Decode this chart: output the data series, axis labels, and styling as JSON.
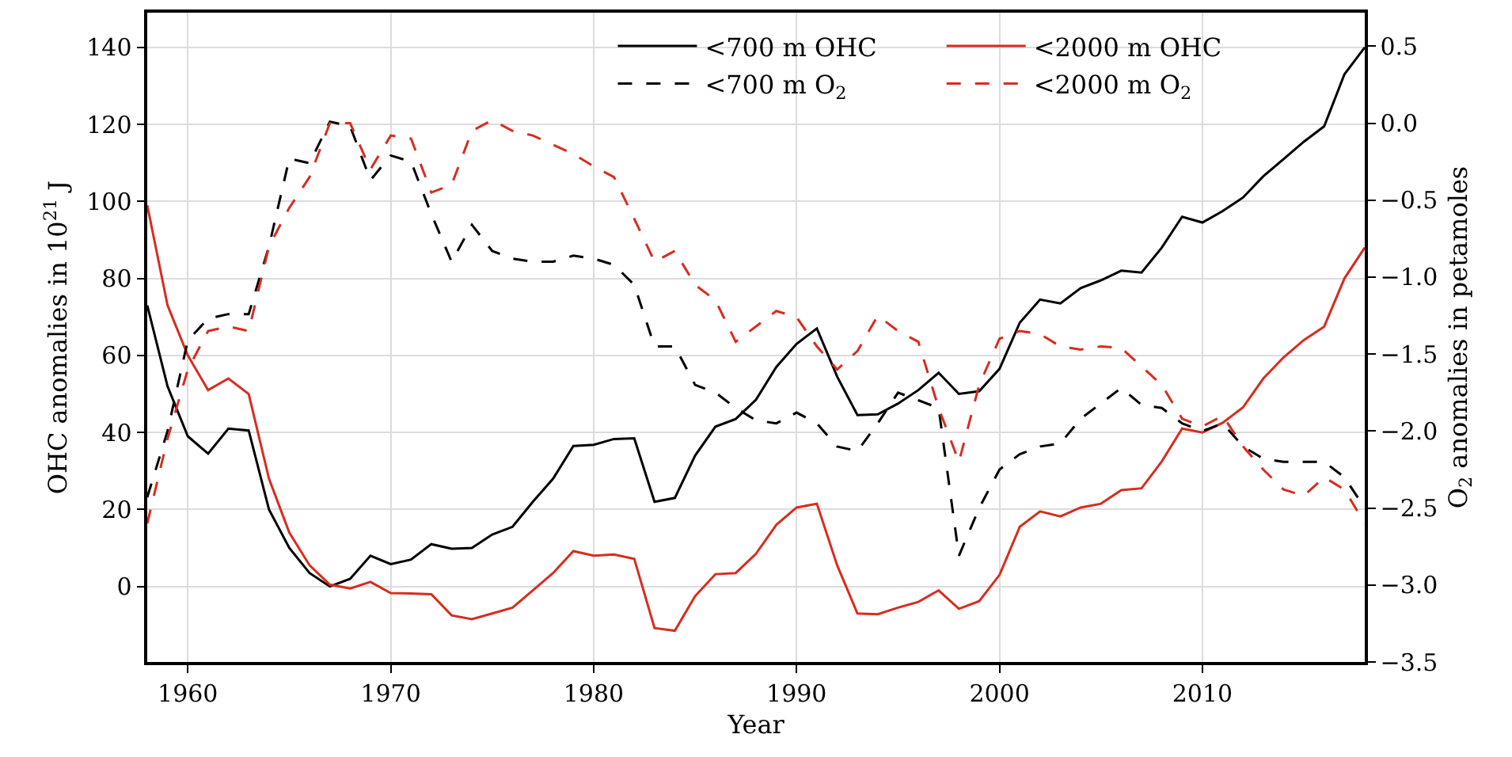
{
  "chart_data": {
    "type": "line",
    "xlabel": "Year",
    "ylabel": "OHC anomalies in 10$^{21}$ J",
    "y2label": "O$_{2}$ anomalies in petamoles",
    "x": [
      1958,
      1959,
      1960,
      1961,
      1962,
      1963,
      1964,
      1965,
      1966,
      1967,
      1968,
      1969,
      1970,
      1971,
      1972,
      1973,
      1974,
      1975,
      1976,
      1977,
      1978,
      1979,
      1980,
      1981,
      1982,
      1983,
      1984,
      1985,
      1986,
      1987,
      1988,
      1989,
      1990,
      1991,
      1992,
      1993,
      1994,
      1995,
      1996,
      1997,
      1998,
      1999,
      2000,
      2001,
      2002,
      2003,
      2004,
      2005,
      2006,
      2007,
      2008,
      2009,
      2010,
      2011,
      2012,
      2013,
      2014,
      2015,
      2016,
      2017,
      2018
    ],
    "series": [
      {
        "name": "<700 m OHC",
        "color": "#000000",
        "line_style": "solid",
        "values": [
          73,
          52,
          39,
          34.5,
          41,
          40.5,
          20,
          10,
          3.5,
          0,
          2,
          8,
          5.8,
          7,
          11,
          9.8,
          10,
          13.5,
          15.5,
          22,
          28,
          36.5,
          36.8,
          38.3,
          38.5,
          22,
          23,
          34,
          41.5,
          43.5,
          48.5,
          57,
          63,
          67,
          54.5,
          44.5,
          44.7,
          47.5,
          51,
          55.5,
          50,
          50.7,
          56.5,
          68.5,
          74.5,
          73.5,
          77.5,
          79.5,
          82,
          81.5,
          88,
          96,
          94.5,
          97.5,
          101,
          106.5,
          111,
          115.5,
          119.5,
          133,
          140
        ]
      },
      {
        "name": "<2000 m OHC",
        "color": "#d62d20",
        "line_style": "solid",
        "values": [
          99,
          73,
          60,
          51,
          54,
          50,
          28,
          14,
          5.5,
          0.5,
          -0.5,
          1.2,
          -1.7,
          -1.8,
          -2,
          -7.5,
          -8.5,
          -7,
          -5.5,
          -1,
          3.5,
          9.2,
          8,
          8.3,
          7.2,
          -10.8,
          -11.5,
          -2.5,
          3.2,
          3.5,
          8.5,
          16,
          20.5,
          21.5,
          5.5,
          -7,
          -7.2,
          -5.5,
          -4,
          -1,
          -5.8,
          -3.8,
          3,
          15.5,
          19.5,
          18.2,
          20.5,
          21.5,
          25,
          25.5,
          32.5,
          41,
          40,
          42.5,
          46.5,
          54,
          59.5,
          64,
          67.5,
          80,
          88
        ]
      },
      {
        "name": "<700 m O$_{2}$",
        "color": "#000000",
        "line_style": "dashed",
        "axis": "y2",
        "values": [
          -2.43,
          -2.0,
          -1.41,
          -1.27,
          -1.24,
          -1.24,
          -0.8,
          -0.23,
          -0.26,
          0.01,
          -0.02,
          -0.37,
          -0.21,
          -0.25,
          -0.59,
          -0.9,
          -0.66,
          -0.83,
          -0.88,
          -0.9,
          -0.9,
          -0.86,
          -0.88,
          -0.92,
          -1.05,
          -1.45,
          -1.45,
          -1.7,
          -1.75,
          -1.85,
          -1.93,
          -1.95,
          -1.88,
          -1.95,
          -2.1,
          -2.13,
          -1.95,
          -1.75,
          -1.8,
          -1.85,
          -2.81,
          -2.5,
          -2.25,
          -2.15,
          -2.1,
          -2.08,
          -1.92,
          -1.82,
          -1.72,
          -1.83,
          -1.85,
          -1.95,
          -2.0,
          -1.95,
          -2.1,
          -2.18,
          -2.2,
          -2.2,
          -2.2,
          -2.3,
          -2.5
        ]
      },
      {
        "name": "<2000 m O$_{2}$",
        "color": "#d62d20",
        "line_style": "dashed",
        "axis": "y2",
        "values": [
          -2.6,
          -2.05,
          -1.6,
          -1.35,
          -1.32,
          -1.35,
          -0.8,
          -0.55,
          -0.35,
          0.0,
          0.0,
          -0.3,
          -0.08,
          -0.1,
          -0.45,
          -0.4,
          -0.05,
          0.02,
          -0.05,
          -0.08,
          -0.14,
          -0.2,
          -0.28,
          -0.35,
          -0.62,
          -0.9,
          -0.83,
          -1.05,
          -1.15,
          -1.42,
          -1.32,
          -1.22,
          -1.26,
          -1.45,
          -1.6,
          -1.48,
          -1.25,
          -1.35,
          -1.42,
          -1.85,
          -2.2,
          -1.7,
          -1.4,
          -1.35,
          -1.37,
          -1.45,
          -1.47,
          -1.45,
          -1.46,
          -1.58,
          -1.7,
          -1.92,
          -1.97,
          -1.9,
          -2.1,
          -2.25,
          -2.38,
          -2.42,
          -2.3,
          -2.38,
          -2.6
        ]
      }
    ],
    "xlim": [
      1958,
      2018
    ],
    "xticks": [
      1960,
      1970,
      1980,
      1990,
      2000,
      2010
    ],
    "ylim": [
      -19.6,
      149
    ],
    "yticks": [
      0,
      20,
      40,
      60,
      80,
      100,
      120,
      140
    ],
    "y2lim": [
      -3.5,
      0.718
    ],
    "y2ticks": [
      0.5,
      {
        "value": 0,
        "label": "0.0"
      },
      {
        "value": -0.5,
        "label": "−0.5"
      },
      {
        "value": -1,
        "label": "−1.0"
      },
      {
        "value": -1.5,
        "label": "−1.5"
      },
      {
        "value": -2,
        "label": "−2.0"
      },
      {
        "value": -2.5,
        "label": "−2.5"
      },
      {
        "value": -3,
        "label": "−3.0"
      },
      {
        "value": -3.5,
        "label": "−3.5"
      }
    ],
    "grid": true,
    "legend": "top"
  }
}
